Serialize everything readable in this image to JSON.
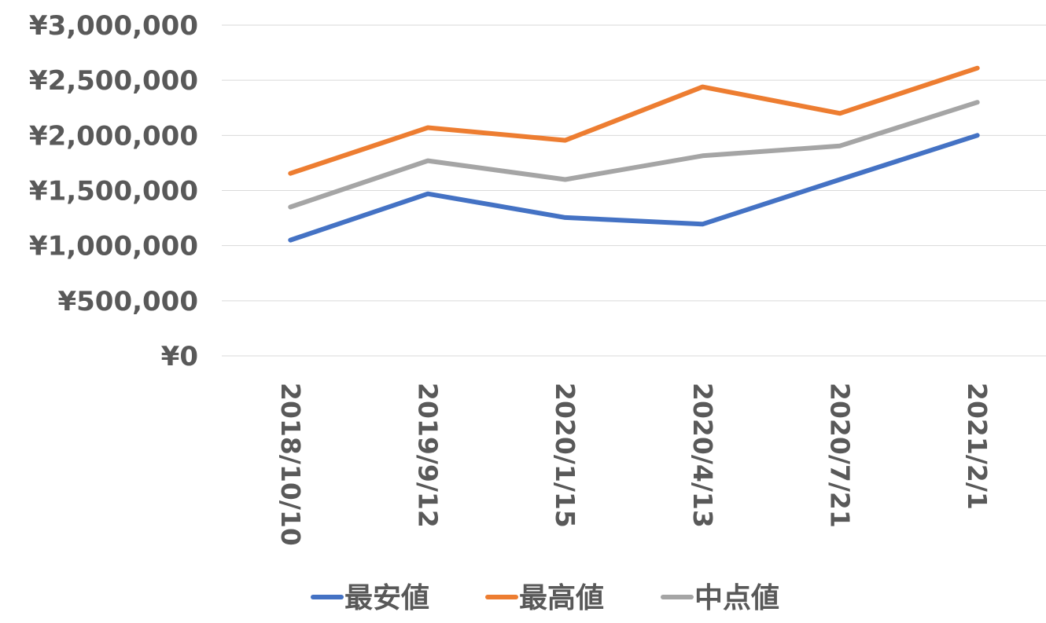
{
  "chart_data": {
    "type": "line",
    "categories": [
      "2018/10/10",
      "2019/9/12",
      "2020/1/15",
      "2020/4/13",
      "2020/7/21",
      "2021/2/1"
    ],
    "series": [
      {
        "name": "最安値",
        "color": "#4472C4",
        "values": [
          1050000,
          1470000,
          1255000,
          1195000,
          1600000,
          2000000
        ]
      },
      {
        "name": "最高値",
        "color": "#ED7D31",
        "values": [
          1655000,
          2070000,
          1955000,
          2440000,
          2200000,
          2610000
        ]
      },
      {
        "name": "中点値",
        "color": "#A5A5A5",
        "values": [
          1350000,
          1770000,
          1600000,
          1815000,
          1905000,
          2300000
        ]
      }
    ],
    "ylim": [
      0,
      3000000
    ],
    "yticks": [
      "¥0",
      "¥500,000",
      "¥1,000,000",
      "¥1,500,000",
      "¥2,000,000",
      "¥2,500,000",
      "¥3,000,000"
    ],
    "grid": true,
    "legend_position": "bottom",
    "gridline_color": "#D9D9D9"
  }
}
